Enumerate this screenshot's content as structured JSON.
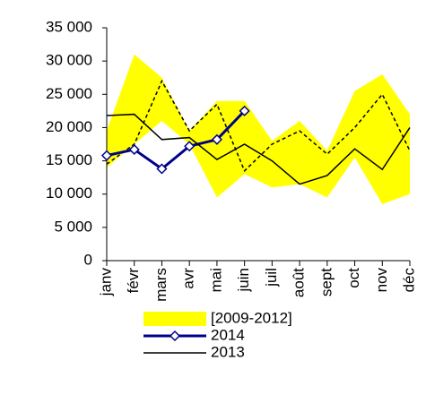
{
  "chart_data": {
    "type": "line",
    "categories": [
      "janv",
      "févr",
      "mars",
      "avr",
      "mai",
      "juin",
      "juil",
      "août",
      "sept",
      "oct",
      "nov",
      "déc"
    ],
    "band": {
      "name": "[2009-2012]",
      "color": "#ffff00",
      "low": [
        14000,
        17500,
        21000,
        17500,
        9500,
        13000,
        11000,
        11500,
        9500,
        15500,
        8500,
        10000
      ],
      "high": [
        19500,
        31000,
        27500,
        19500,
        24000,
        24000,
        18000,
        21000,
        16500,
        25500,
        28000,
        22000
      ]
    },
    "series": [
      {
        "color": "#000000",
        "dashed": true,
        "values": [
          14500,
          17500,
          27000,
          19500,
          23500,
          13500,
          17500,
          19500,
          16000,
          20000,
          25000,
          16500
        ]
      },
      {
        "name": "2014",
        "color": "#00008b",
        "marker": "diamond",
        "values": [
          15800,
          16700,
          13800,
          17200,
          18200,
          22500,
          null,
          null,
          null,
          null,
          null,
          null
        ]
      },
      {
        "name": "2013",
        "color": "#000000",
        "values": [
          21800,
          22000,
          18200,
          18500,
          15200,
          17500,
          15000,
          11500,
          12800,
          16800,
          13700,
          20000
        ]
      }
    ],
    "ylim": [
      0,
      35000
    ],
    "yticks": [
      0,
      {
        "value": 5000,
        "label": "5 000"
      },
      {
        "value": 10000,
        "label": "10 000"
      },
      {
        "value": 15000,
        "label": "15 000"
      },
      {
        "value": 20000,
        "label": "20 000"
      },
      {
        "value": 25000,
        "label": "25 000"
      },
      {
        "value": 30000,
        "label": "30 000"
      },
      {
        "value": 35000,
        "label": "35 000"
      }
    ],
    "grid": false
  }
}
